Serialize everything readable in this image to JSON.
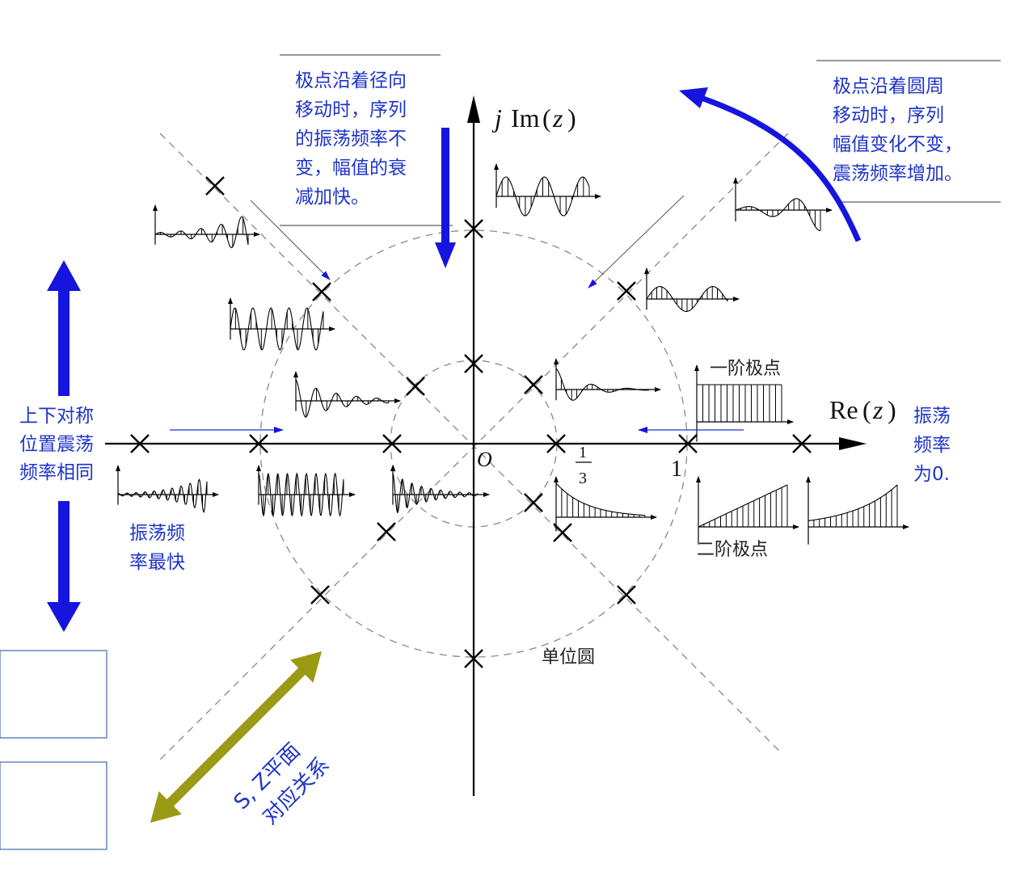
{
  "colors": {
    "accent_blue": "#1f35c8",
    "arrow_blue": "#1515dd",
    "olive": "#9a9a14",
    "axis": "#000000",
    "dashed": "#888888"
  },
  "axes": {
    "real_label": "Re",
    "imag_prefix": "j",
    "imag_label": "Im",
    "arg": "z",
    "origin": "O"
  },
  "ticks": {
    "third_num": "1",
    "third_den": "3",
    "one": "1"
  },
  "labels": {
    "unit_circle": "单位圆",
    "first_order": "一阶极点",
    "second_order": "二阶极点",
    "radial_note": [
      "极点沿着径向",
      "移动时，序列",
      "的振荡频率不",
      "变，幅值的衰",
      "减加快。"
    ],
    "circum_note": [
      "极点沿着圆周",
      "移动时，序列",
      "幅值变化不变，",
      "震荡频率增加。"
    ],
    "symmetric_note": [
      "上下对称",
      "位置震荡",
      "频率相同"
    ],
    "fastest_note": [
      "振荡频",
      "率最快"
    ],
    "zero_freq_note": [
      "振荡",
      "频率",
      "为0."
    ],
    "sz_note": [
      "S, Z平面",
      "对应关系"
    ]
  },
  "icons": [
    "pole-cross-icon",
    "up-down-double-arrow-icon",
    "diagonal-double-arrow-icon",
    "curved-arrow-icon"
  ]
}
